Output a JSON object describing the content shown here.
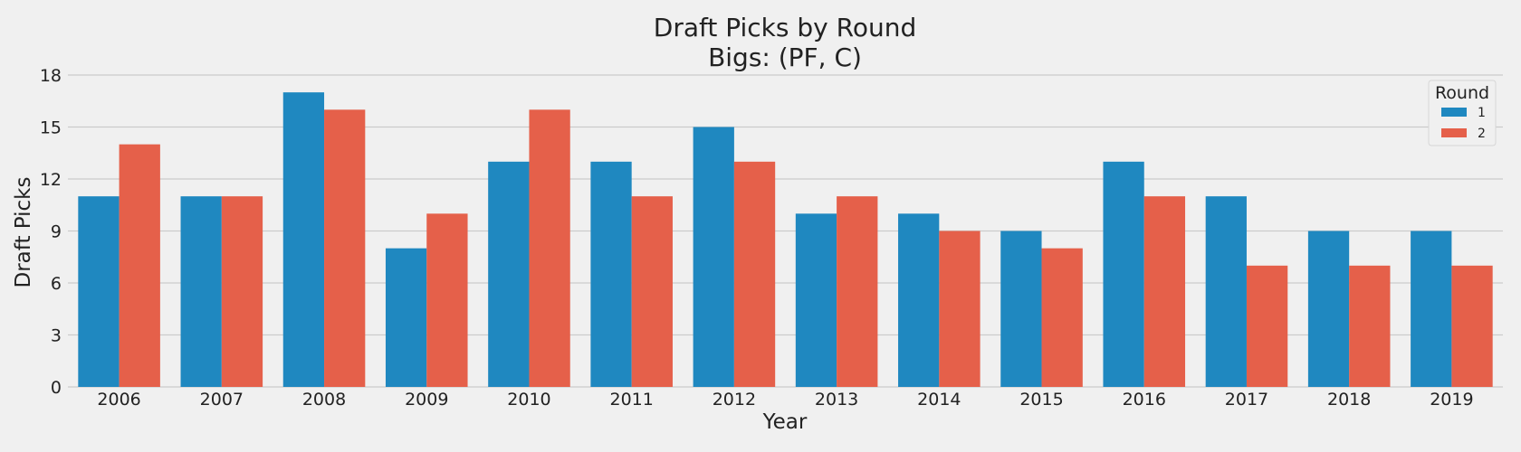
{
  "chart_data": {
    "type": "bar",
    "title": "Draft Picks by Round",
    "subtitle": "Bigs: (PF, C)",
    "xlabel": "Year",
    "ylabel": "Draft Picks",
    "categories": [
      "2006",
      "2007",
      "2008",
      "2009",
      "2010",
      "2011",
      "2012",
      "2013",
      "2014",
      "2015",
      "2016",
      "2017",
      "2018",
      "2019"
    ],
    "series": [
      {
        "name": "1",
        "color": "#1f88c0",
        "values": [
          11,
          11,
          17,
          8,
          13,
          13,
          15,
          10,
          10,
          9,
          13,
          11,
          9,
          9
        ]
      },
      {
        "name": "2",
        "color": "#e5604a",
        "values": [
          14,
          11,
          16,
          10,
          16,
          11,
          13,
          11,
          9,
          8,
          11,
          7,
          7,
          7
        ]
      }
    ],
    "ylim": [
      0,
      18
    ],
    "yticks": [
      0,
      3,
      6,
      9,
      12,
      15,
      18
    ],
    "grid": true,
    "legend": {
      "title": "Round",
      "position": "top-right"
    }
  }
}
